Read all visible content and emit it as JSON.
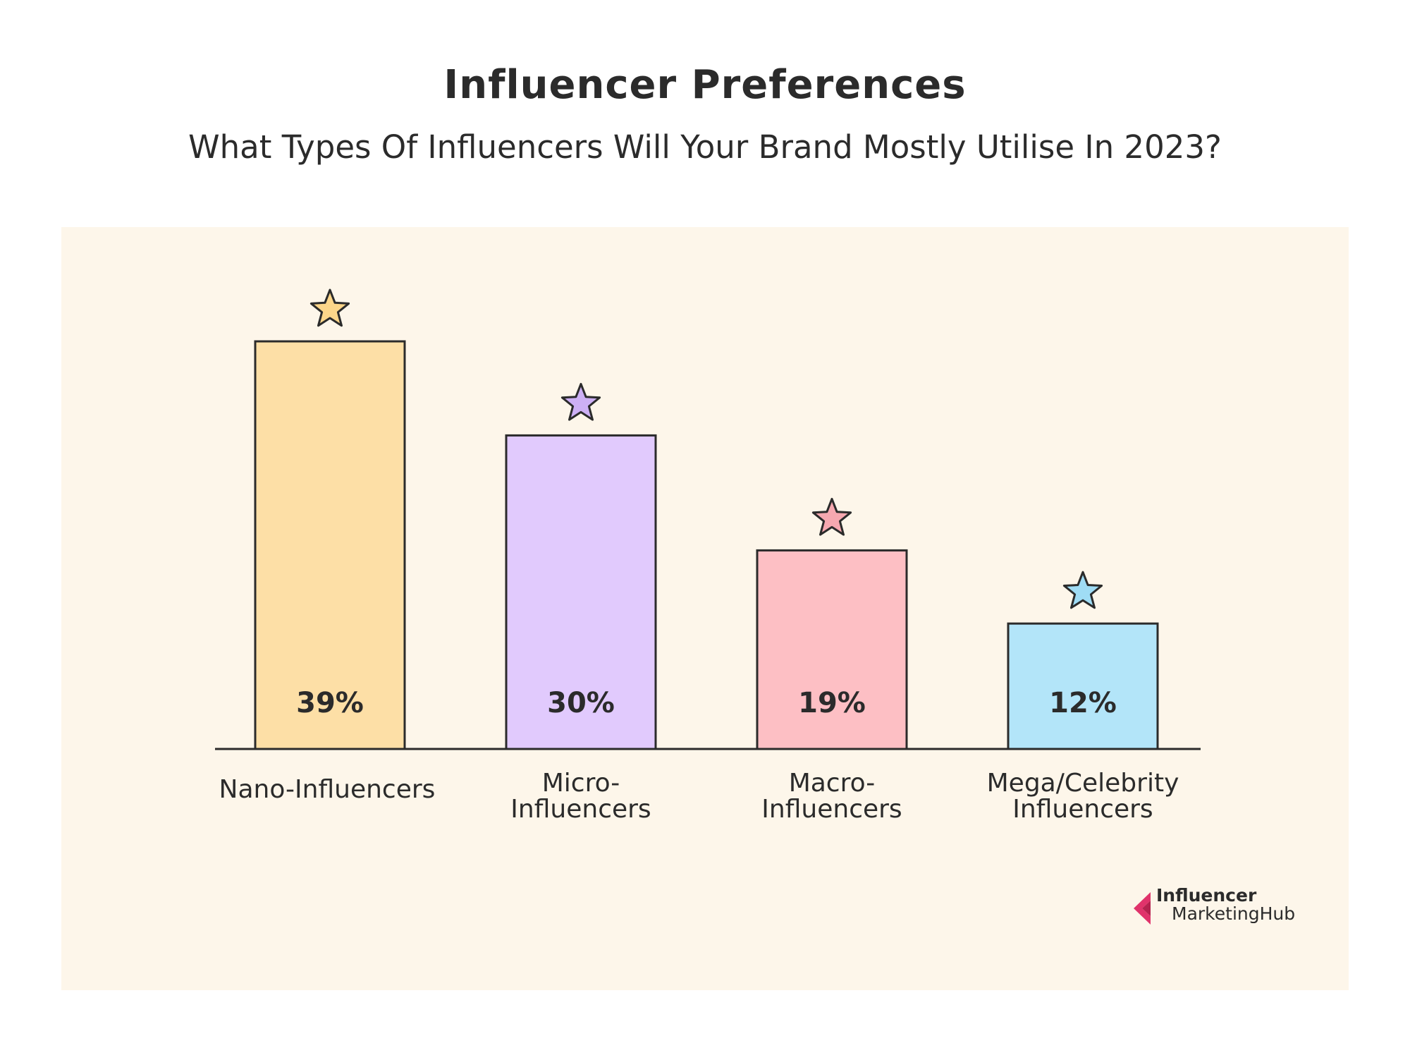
{
  "header": {
    "title": "Influencer Preferences",
    "subtitle": "What Types Of Influencers Will Your Brand Mostly Utilise In 2023?"
  },
  "brand": {
    "line1": "Influencer",
    "line2": "MarketingHub",
    "accent_color": "#e0336b"
  },
  "chart_data": {
    "type": "bar",
    "title": "Influencer Preferences",
    "subtitle": "What Types Of Influencers Will Your Brand Mostly Utilise In 2023?",
    "categories": [
      "Nano-Influencers",
      "Micro-Influencers",
      "Macro-Influencers",
      "Mega/Celebrity Influencers"
    ],
    "category_labels": [
      [
        "Nano-Influencers"
      ],
      [
        "Micro-",
        "Influencers"
      ],
      [
        "Macro-",
        "Influencers"
      ],
      [
        "Mega/Celebrity",
        "Influencers"
      ]
    ],
    "values": [
      39,
      30,
      19,
      12
    ],
    "value_labels": [
      "39%",
      "30%",
      "19%",
      "12%"
    ],
    "unit": "%",
    "bar_colors": [
      "#fddfa6",
      "#e1cafd",
      "#fdbfc4",
      "#b3e5f9"
    ],
    "star_colors": [
      "#fcd68a",
      "#cdb0f5",
      "#f6a8b0",
      "#9fdcf5"
    ],
    "grid": false,
    "legend": "none",
    "xlabel": "",
    "ylabel": ""
  }
}
